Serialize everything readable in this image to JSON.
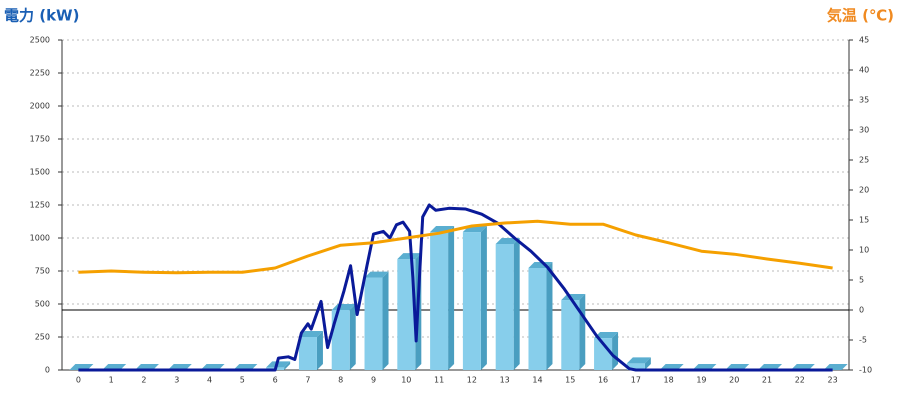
{
  "chart_data": {
    "type": "bar",
    "ylabel": "電力 (kW)",
    "y2label": "気温 (℃)",
    "categories": [
      "0",
      "1",
      "2",
      "3",
      "4",
      "5",
      "6",
      "7",
      "8",
      "9",
      "10",
      "11",
      "12",
      "13",
      "14",
      "15",
      "16",
      "17",
      "18",
      "19",
      "20",
      "21",
      "22",
      "23"
    ],
    "ylim": [
      0,
      2500
    ],
    "yticks": [
      0,
      250,
      500,
      750,
      1000,
      1250,
      1500,
      1750,
      2000,
      2250,
      2500
    ],
    "y2lim": [
      -10,
      45
    ],
    "y2ticks": [
      -10,
      -5,
      0,
      5,
      10,
      15,
      20,
      25,
      30,
      35,
      40,
      45
    ],
    "grid": true,
    "zero_line": {
      "axis": "y2",
      "value": 0
    },
    "series": [
      {
        "type": "bar",
        "color": "#87ceeb",
        "values": [
          0,
          0,
          0,
          0,
          0,
          0,
          20,
          250,
          455,
          700,
          840,
          1045,
          1045,
          955,
          773,
          530,
          242,
          50,
          0,
          0,
          0,
          0,
          0,
          0
        ]
      },
      {
        "type": "line",
        "color": "#0a1a99",
        "x": [
          0,
          6,
          6.1,
          6.4,
          6.6,
          6.8,
          7,
          7.1,
          7.4,
          7.6,
          7.8,
          8.1,
          8.3,
          8.5,
          8.8,
          9,
          9.3,
          9.5,
          9.7,
          9.9,
          10.1,
          10.2,
          10.3,
          10.4,
          10.5,
          10.7,
          10.9,
          11.3,
          11.8,
          12.3,
          12.8,
          13.3,
          13.8,
          14.3,
          14.8,
          15.3,
          15.8,
          16.3,
          16.8,
          17,
          23
        ],
        "values": [
          0,
          0,
          90,
          100,
          80,
          280,
          350,
          310,
          520,
          170,
          350,
          600,
          790,
          420,
          790,
          1030,
          1050,
          1000,
          1100,
          1120,
          1050,
          700,
          220,
          700,
          1160,
          1250,
          1210,
          1225,
          1220,
          1180,
          1110,
          1000,
          900,
          780,
          620,
          440,
          260,
          110,
          10,
          0,
          0
        ]
      },
      {
        "type": "line",
        "axis": "y2",
        "color": "#f5a000",
        "values": [
          6.3,
          6.5,
          6.3,
          6.2,
          6.3,
          6.3,
          7,
          9,
          10.8,
          11.2,
          12,
          12.8,
          14,
          14.5,
          14.8,
          14.3,
          14.3,
          12.5,
          11.2,
          9.8,
          9.3,
          8.5,
          7.8,
          7
        ]
      }
    ]
  }
}
